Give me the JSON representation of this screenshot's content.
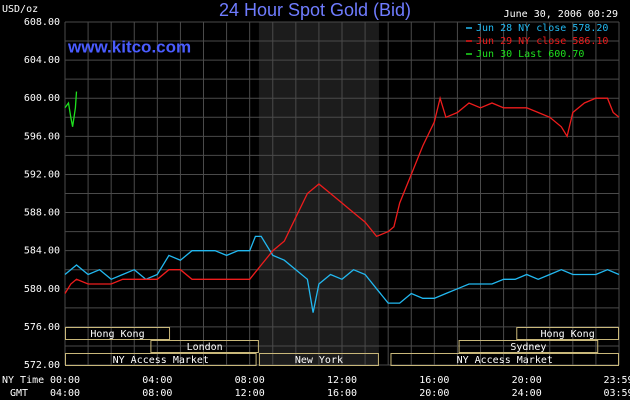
{
  "chart_data": {
    "type": "line",
    "title": "24 Hour Spot Gold (Bid)",
    "timestamp": "June 30, 2006 00:29",
    "y_label": "USD/oz",
    "watermark": "www.kitco.com",
    "x_row_label": "NY Time",
    "x2_row_label": "GMT",
    "xlim": [
      0,
      24
    ],
    "ylim": [
      572,
      608
    ],
    "xticks": [
      {
        "value": 0,
        "label": "00:00"
      },
      {
        "value": 4,
        "label": "04:00"
      },
      {
        "value": 8,
        "label": "08:00"
      },
      {
        "value": 12,
        "label": "12:00"
      },
      {
        "value": 16,
        "label": "16:00"
      },
      {
        "value": 20,
        "label": "20:00"
      },
      {
        "value": 23.98,
        "label": "23:59"
      }
    ],
    "x2ticklabels": [
      "04:00",
      "08:00",
      "12:00",
      "16:00",
      "20:00",
      "24:00",
      "03:59"
    ],
    "yticks": [
      {
        "value": 572,
        "label": "572.00"
      },
      {
        "value": 576,
        "label": "576.00"
      },
      {
        "value": 580,
        "label": "580.00"
      },
      {
        "value": 584,
        "label": "584.00"
      },
      {
        "value": 588,
        "label": "588.00"
      },
      {
        "value": 592,
        "label": "592.00"
      },
      {
        "value": 596,
        "label": "596.00"
      },
      {
        "value": 600,
        "label": "600.00"
      },
      {
        "value": 604,
        "label": "604.00"
      },
      {
        "value": 608,
        "label": "608.00"
      }
    ],
    "xgrid": [
      0,
      1,
      2,
      3,
      4,
      5,
      6,
      7,
      8,
      9,
      10,
      11,
      12,
      13,
      14,
      15,
      16,
      17,
      18,
      19,
      20,
      21,
      22,
      23,
      24
    ],
    "ygrid": [
      572,
      574,
      576,
      578,
      580,
      582,
      584,
      586,
      588,
      590,
      592,
      594,
      596,
      598,
      600,
      602,
      604,
      606,
      608
    ],
    "grid": true,
    "legend": "top-right",
    "sessions": [
      {
        "label": "Hong Kong",
        "start": 0,
        "end": 4.55,
        "row": 0
      },
      {
        "label": "Hong Kong",
        "start": 19.55,
        "end": 24,
        "row": 0
      },
      {
        "label": "London",
        "start": 3.7,
        "end": 8.4,
        "row": 1
      },
      {
        "label": "Sydney",
        "start": 17.05,
        "end": 23.1,
        "row": 1
      },
      {
        "label": "NY Access Market",
        "start": 0,
        "end": 8.3,
        "row": 2
      },
      {
        "label": "New York",
        "start": 8.4,
        "end": 13.6,
        "row": 2,
        "shaded": true
      },
      {
        "label": "NY Access Market",
        "start": 14.1,
        "end": 24,
        "row": 2
      }
    ],
    "series": [
      {
        "name": "Jun 28 NY close 578.20",
        "color": "#22b8f0",
        "x": [
          0,
          0.5,
          1,
          1.5,
          2,
          2.5,
          3,
          3.5,
          4,
          4.5,
          5,
          5.5,
          6,
          6.5,
          7,
          7.5,
          8,
          8.25,
          8.5,
          9,
          9.5,
          10,
          10.5,
          10.75,
          11,
          11.5,
          12,
          12.5,
          13,
          13.5,
          14,
          14.5,
          15,
          15.5,
          16,
          16.5,
          17,
          17.5,
          18,
          18.5,
          19,
          19.5,
          20,
          20.5,
          21,
          21.5,
          22,
          22.5,
          23,
          23.5,
          24
        ],
        "values": [
          581.5,
          582.5,
          581.5,
          582,
          581,
          581.5,
          582,
          581,
          581.5,
          583.5,
          583,
          584,
          584,
          584,
          583.5,
          584,
          584,
          585.5,
          585.5,
          583.5,
          583,
          582,
          581,
          577.5,
          580.5,
          581.5,
          581,
          582,
          581.5,
          580,
          578.5,
          578.5,
          579.5,
          579,
          579,
          579.5,
          580,
          580.5,
          580.5,
          580.5,
          581,
          581,
          581.5,
          581,
          581.5,
          582,
          581.5,
          581.5,
          581.5,
          582,
          581.5
        ]
      },
      {
        "name": "Jun 29 NY close 586.10",
        "color": "#ee1c1c",
        "x": [
          0,
          0.25,
          0.5,
          1,
          1.5,
          2,
          2.5,
          3,
          3.5,
          4,
          4.5,
          5,
          5.5,
          6,
          6.5,
          7,
          7.5,
          8,
          8.5,
          9,
          9.5,
          10,
          10.5,
          11,
          11.5,
          12,
          12.5,
          13,
          13.5,
          14,
          14.25,
          14.5,
          15,
          15.5,
          16,
          16.25,
          16.5,
          17,
          17.5,
          18,
          18.5,
          19,
          19.5,
          20,
          20.5,
          21,
          21.5,
          21.75,
          22,
          22.5,
          23,
          23.5,
          23.75,
          24
        ],
        "values": [
          579.5,
          580.5,
          581,
          580.5,
          580.5,
          580.5,
          581,
          581,
          581,
          581,
          582,
          582,
          581,
          581,
          581,
          581,
          581,
          581,
          582.5,
          584,
          585,
          587.5,
          590,
          591,
          590,
          589,
          588,
          587,
          585.5,
          586,
          586.5,
          589,
          592,
          595,
          597.5,
          600,
          598,
          598.5,
          599.5,
          599,
          599.5,
          599,
          599,
          599,
          598.5,
          598,
          597,
          596,
          598.5,
          599.5,
          600,
          600,
          598.5,
          598
        ]
      },
      {
        "name": "Jun 30 Last 600.70",
        "color": "#1ee01e",
        "x": [
          0,
          0.15,
          0.25,
          0.33,
          0.45,
          0.5
        ],
        "values": [
          599,
          599.5,
          598,
          597,
          599,
          600.7
        ]
      }
    ]
  }
}
